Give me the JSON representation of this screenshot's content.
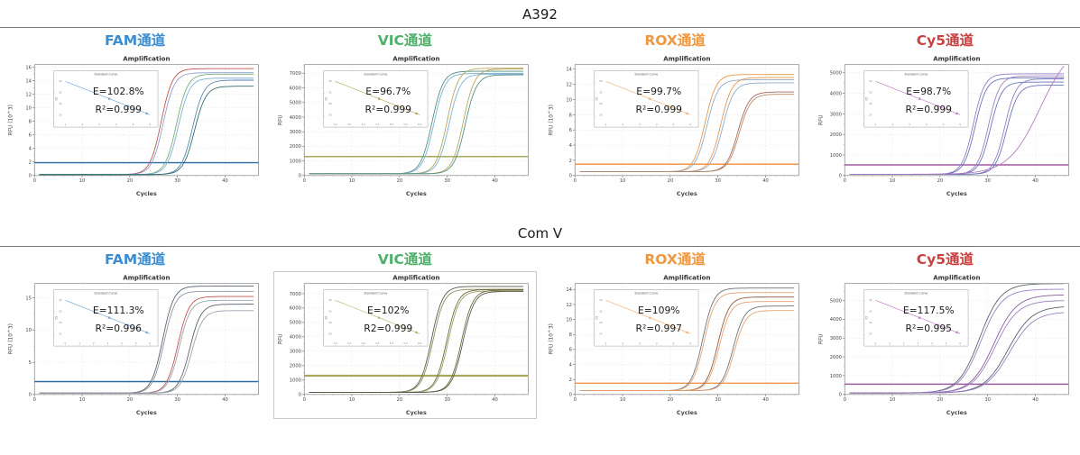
{
  "sections": [
    {
      "title": "A392",
      "channels": [
        {
          "label": "FAM通道",
          "color": "#3d8ed0"
        },
        {
          "label": "VIC通道",
          "color": "#4fb06a"
        },
        {
          "label": "ROX通道",
          "color": "#f0983f"
        },
        {
          "label": "Cy5通道",
          "color": "#ca4141"
        }
      ]
    },
    {
      "title": "Com V",
      "channels": [
        {
          "label": "FAM通道",
          "color": "#3d8ed0"
        },
        {
          "label": "VIC通道",
          "color": "#4fb06a"
        },
        {
          "label": "ROX通道",
          "color": "#f0983f"
        },
        {
          "label": "Cy5通道",
          "color": "#ca4141"
        }
      ]
    }
  ],
  "chart_data": [
    {
      "type": "line",
      "section": "A392",
      "channel": "FAM通道",
      "title": "Amplification",
      "xlabel": "Cycles",
      "ylabel": "RFU (10^3)",
      "x_ticks": [
        0,
        10,
        20,
        30,
        40
      ],
      "x_max": 47,
      "y_ticks": [
        0,
        2,
        4,
        6,
        8,
        10,
        12,
        14,
        16
      ],
      "y_max": 16.4,
      "baseline": 0.15,
      "threshold": {
        "value": 1.9,
        "color": "#2e6da4"
      },
      "curves": [
        {
          "mid": 26.6,
          "plateau": 15.8,
          "color": "#c0504d"
        },
        {
          "mid": 27.0,
          "plateau": 15.2,
          "color": "#8e9fce"
        },
        {
          "mid": 29.8,
          "plateau": 15.0,
          "color": "#79a979"
        },
        {
          "mid": 30.2,
          "plateau": 14.4,
          "color": "#7bafd4"
        },
        {
          "mid": 33.2,
          "plateau": 14.1,
          "color": "#5b84b1"
        },
        {
          "mid": 33.6,
          "plateau": 13.2,
          "color": "#2e6b6b"
        }
      ],
      "inset": {
        "title": "Standard Curve",
        "ylabel": "Ct",
        "efficiency": "E=102.8%",
        "r_squared": "R²=0.999",
        "color": "#7aa7d4",
        "xticks": [
          "1",
          "2",
          "3",
          "4",
          "5",
          "6"
        ],
        "yticks": [
          "40",
          "35",
          "30",
          "25"
        ]
      }
    },
    {
      "type": "line",
      "section": "A392",
      "channel": "VIC通道",
      "title": "Amplification",
      "xlabel": "Cycles",
      "ylabel": "RFU",
      "x_ticks": [
        0,
        10,
        20,
        30,
        40
      ],
      "x_max": 47,
      "y_ticks": [
        0,
        1000,
        2000,
        3000,
        4000,
        5000,
        6000,
        7000
      ],
      "y_max": 7600,
      "baseline": 120,
      "threshold": {
        "value": 1300,
        "color": "#a8a85a"
      },
      "curves": [
        {
          "mid": 26.8,
          "plateau": 7150,
          "color": "#4e8e7f"
        },
        {
          "mid": 27.2,
          "plateau": 7000,
          "color": "#7bafd4"
        },
        {
          "mid": 30.0,
          "plateau": 7350,
          "color": "#b5a55a"
        },
        {
          "mid": 30.4,
          "plateau": 6950,
          "color": "#7bafd4"
        },
        {
          "mid": 33.4,
          "plateau": 7300,
          "color": "#b5a55a"
        },
        {
          "mid": 33.8,
          "plateau": 6900,
          "color": "#4e8e7f"
        }
      ],
      "inset": {
        "title": "Standard Curve",
        "ylabel": "Ct",
        "efficiency": "E=96.7%",
        "r_squared": "R²=0.999",
        "color": "#b5a55a",
        "xticks": [
          "3.0",
          "3.5",
          "4.0",
          "4.5",
          "5.0",
          "5.5",
          "6.0"
        ],
        "yticks": [
          "36",
          "32",
          "28",
          "26"
        ]
      }
    },
    {
      "type": "line",
      "section": "A392",
      "channel": "ROX通道",
      "title": "Amplification",
      "xlabel": "Cycles",
      "ylabel": "RFU (10^3)",
      "x_ticks": [
        0,
        10,
        20,
        30,
        40
      ],
      "x_max": 47,
      "y_ticks": [
        0,
        2,
        4,
        6,
        8,
        10,
        12,
        14
      ],
      "y_max": 14.6,
      "baseline": 0.5,
      "threshold": {
        "value": 1.5,
        "color": "#f0954a"
      },
      "curves": [
        {
          "mid": 27.3,
          "plateau": 13.3,
          "color": "#e69549"
        },
        {
          "mid": 27.7,
          "plateau": 12.6,
          "color": "#8fa9cc"
        },
        {
          "mid": 30.6,
          "plateau": 12.9,
          "color": "#e69549"
        },
        {
          "mid": 31.0,
          "plateau": 12.2,
          "color": "#8fa9cc"
        },
        {
          "mid": 34.2,
          "plateau": 11.0,
          "color": "#9e6b5a"
        },
        {
          "mid": 34.5,
          "plateau": 10.7,
          "color": "#b98868"
        }
      ],
      "inset": {
        "title": "Standard Curve",
        "ylabel": "Ct",
        "efficiency": "E=99.7%",
        "r_squared": "R²=0.999",
        "color": "#f0b27a",
        "xticks": [
          "1",
          "2",
          "3",
          "4",
          "5",
          "6"
        ],
        "yticks": [
          "40",
          "35",
          "30",
          "25"
        ]
      }
    },
    {
      "type": "line",
      "section": "A392",
      "channel": "Cy5通道",
      "title": "Amplification",
      "xlabel": "Cycles",
      "ylabel": "RFU",
      "x_ticks": [
        0,
        10,
        20,
        30,
        40
      ],
      "x_max": 47,
      "y_ticks": [
        0,
        1000,
        2000,
        3000,
        4000,
        5000
      ],
      "y_max": 5400,
      "baseline": 60,
      "threshold": {
        "value": 520,
        "color": "#a05aa0"
      },
      "curves": [
        {
          "mid": 27.0,
          "plateau": 4950,
          "color": "#8e7cc3"
        },
        {
          "mid": 27.4,
          "plateau": 4750,
          "color": "#6674b8"
        },
        {
          "mid": 30.2,
          "plateau": 4850,
          "color": "#9a7fc0"
        },
        {
          "mid": 30.6,
          "plateau": 4550,
          "color": "#6674b8"
        },
        {
          "mid": 33.6,
          "plateau": 4700,
          "color": "#8e7cc3"
        },
        {
          "mid": 34.0,
          "plateau": 4400,
          "color": "#6674b8"
        },
        {
          "mid": 41.0,
          "plateau": 6500,
          "k": 0.3,
          "color": "#b07cc3"
        }
      ],
      "inset": {
        "title": "Standard Curve",
        "ylabel": "Ct",
        "efficiency": "E=98.7%",
        "r_squared": "R²=0.999",
        "color": "#c07cc3",
        "xticks": [
          "1",
          "2",
          "3",
          "4",
          "5",
          "6"
        ],
        "yticks": [
          "40",
          "35",
          "30",
          "25"
        ]
      }
    },
    {
      "type": "line",
      "section": "Com V",
      "channel": "FAM通道",
      "title": "Amplification",
      "xlabel": "Cycles",
      "ylabel": "RFU (10^3)",
      "x_ticks": [
        0,
        10,
        20,
        30,
        40
      ],
      "x_max": 47,
      "y_ticks": [
        0,
        5,
        10,
        15
      ],
      "y_max": 17.2,
      "baseline": 0.2,
      "threshold": {
        "value": 2.0,
        "color": "#2e6da4"
      },
      "curves": [
        {
          "mid": 26.9,
          "plateau": 16.8,
          "color": "#55606e"
        },
        {
          "mid": 27.2,
          "plateau": 16.0,
          "color": "#8a93a0"
        },
        {
          "mid": 30.1,
          "plateau": 15.2,
          "color": "#c0504d"
        },
        {
          "mid": 30.4,
          "plateau": 14.6,
          "color": "#9aa2ad"
        },
        {
          "mid": 32.6,
          "plateau": 14.0,
          "color": "#55606e"
        },
        {
          "mid": 33.0,
          "plateau": 13.0,
          "color": "#9aa2ad"
        }
      ],
      "inset": {
        "title": "Standard Curve",
        "ylabel": "Ct",
        "efficiency": "E=111.3%",
        "r_squared": "R²=0.996",
        "color": "#7aa7d4",
        "xticks": [
          "0",
          "1",
          "2",
          "3",
          "4",
          "5",
          "6"
        ],
        "yticks": [
          "40",
          "35",
          "30",
          "25"
        ]
      }
    },
    {
      "type": "line",
      "section": "Com V",
      "channel": "VIC通道",
      "title": "Amplification",
      "xlabel": "Cycles",
      "ylabel": "RFU",
      "x_ticks": [
        0,
        10,
        20,
        30,
        40
      ],
      "x_max": 47,
      "y_ticks": [
        0,
        1000,
        2000,
        3000,
        4000,
        5000,
        6000,
        7000
      ],
      "y_max": 7700,
      "baseline": 150,
      "threshold": {
        "value": 1300,
        "color": "#a8a85a",
        "width": 2.4
      },
      "card": true,
      "curves": [
        {
          "mid": 26.7,
          "plateau": 7500,
          "color": "#55584a"
        },
        {
          "mid": 27.0,
          "plateau": 7300,
          "color": "#8a8a5a"
        },
        {
          "mid": 29.9,
          "plateau": 7280,
          "color": "#6b6b3a"
        },
        {
          "mid": 30.2,
          "plateau": 7180,
          "color": "#9a9a6a"
        },
        {
          "mid": 33.0,
          "plateau": 7250,
          "color": "#6b6b3a"
        },
        {
          "mid": 33.3,
          "plateau": 7150,
          "color": "#55584a"
        }
      ],
      "inset": {
        "title": "Standard Curve",
        "ylabel": "Ct",
        "efficiency": "E=102%",
        "r_squared": "R2=0.999",
        "color": "#b5b57a",
        "xticks": [
          "3.0",
          "3.5",
          "4.0",
          "4.5",
          "5.0",
          "5.5",
          "6.0"
        ],
        "yticks": [
          "36",
          "32",
          "30",
          "28"
        ]
      }
    },
    {
      "type": "line",
      "section": "Com V",
      "channel": "ROX通道",
      "title": "Amplification",
      "xlabel": "Cycles",
      "ylabel": "RFU (10^3)",
      "x_ticks": [
        0,
        10,
        20,
        30,
        40
      ],
      "x_max": 47,
      "y_ticks": [
        0,
        2,
        4,
        6,
        8,
        10,
        12,
        14
      ],
      "y_max": 14.8,
      "baseline": 0.5,
      "threshold": {
        "value": 1.5,
        "color": "#f0954a"
      },
      "curves": [
        {
          "mid": 26.8,
          "plateau": 14.2,
          "color": "#6e7075"
        },
        {
          "mid": 27.1,
          "plateau": 13.6,
          "color": "#e6a06a"
        },
        {
          "mid": 30.0,
          "plateau": 13.0,
          "color": "#8a5a44"
        },
        {
          "mid": 30.3,
          "plateau": 12.4,
          "color": "#e6a06a"
        },
        {
          "mid": 33.2,
          "plateau": 11.8,
          "color": "#6e7075"
        },
        {
          "mid": 33.5,
          "plateau": 11.2,
          "color": "#e6a06a"
        }
      ],
      "inset": {
        "title": "Standard Curve",
        "ylabel": "Ct",
        "efficiency": "E=109%",
        "r_squared": "R²=0.997",
        "color": "#f0b27a",
        "xticks": [
          "1",
          "2",
          "3",
          "4",
          "5",
          "6"
        ],
        "yticks": [
          "40",
          "35",
          "30",
          "25"
        ]
      }
    },
    {
      "type": "line",
      "section": "Com V",
      "channel": "Cy5通道",
      "title": "Amplification",
      "xlabel": "Cycles",
      "ylabel": "RFU",
      "x_ticks": [
        0,
        10,
        20,
        30,
        40
      ],
      "x_max": 47,
      "y_ticks": [
        0,
        1000,
        2000,
        3000,
        4000,
        5000
      ],
      "y_max": 5900,
      "baseline": 80,
      "threshold": {
        "value": 550,
        "color": "#a05aa0"
      },
      "curves": [
        {
          "mid": 28.3,
          "plateau": 5900,
          "k": 0.45,
          "color": "#55606e"
        },
        {
          "mid": 28.6,
          "plateau": 5600,
          "k": 0.45,
          "color": "#9a7fc0"
        },
        {
          "mid": 31.3,
          "plateau": 5300,
          "k": 0.42,
          "color": "#8a5a9e"
        },
        {
          "mid": 31.6,
          "plateau": 5000,
          "k": 0.42,
          "color": "#9a7fc0"
        },
        {
          "mid": 34.3,
          "plateau": 4700,
          "k": 0.4,
          "color": "#55606e"
        },
        {
          "mid": 34.6,
          "plateau": 4400,
          "k": 0.4,
          "color": "#9a7fc0"
        }
      ],
      "inset": {
        "title": "Standard Curve",
        "ylabel": "Ct",
        "efficiency": "E=117.5%",
        "r_squared": "R²=0.995",
        "color": "#c07cc3",
        "xticks": [
          "0",
          "1",
          "2",
          "3",
          "4",
          "5",
          "6"
        ],
        "yticks": [
          "40",
          "35",
          "30",
          "25"
        ]
      }
    }
  ]
}
